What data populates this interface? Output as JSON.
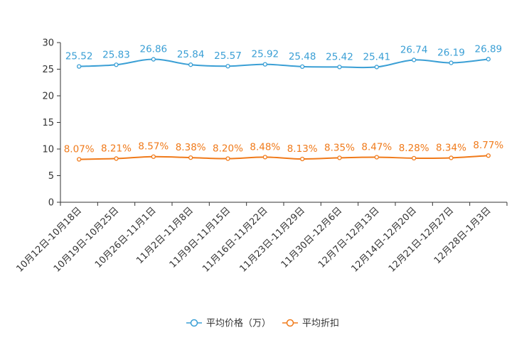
{
  "chart_data": {
    "type": "line",
    "title": "",
    "xlabel": "",
    "ylabel": "",
    "ylim": [
      0,
      30
    ],
    "yticks": [
      0,
      5,
      10,
      15,
      20,
      25,
      30
    ],
    "categories": [
      "10月12日-10月18日",
      "10月19日-10月25日",
      "10月26日-11月1日",
      "11月2日-11月8日",
      "11月9日-11月15日",
      "11月16日-11月22日",
      "11月23日-11月29日",
      "11月30日-12月6日",
      "12月7日-12月13日",
      "12月14日-12月20日",
      "12月21日-12月27日",
      "12月28日-1月3日"
    ],
    "series": [
      {
        "name": "平均价格（万）",
        "color": "#3a9fd5",
        "values": [
          25.52,
          25.83,
          26.86,
          25.84,
          25.57,
          25.92,
          25.48,
          25.42,
          25.41,
          26.74,
          26.19,
          26.89
        ],
        "labels": [
          "25.52",
          "25.83",
          "26.86",
          "25.84",
          "25.57",
          "25.92",
          "25.48",
          "25.42",
          "25.41",
          "26.74",
          "26.19",
          "26.89"
        ]
      },
      {
        "name": "平均折扣",
        "color": "#f07a1a",
        "values": [
          8.07,
          8.21,
          8.57,
          8.38,
          8.2,
          8.48,
          8.13,
          8.35,
          8.47,
          8.28,
          8.34,
          8.77
        ],
        "labels": [
          "8.07%",
          "8.21%",
          "8.57%",
          "8.38%",
          "8.20%",
          "8.48%",
          "8.13%",
          "8.35%",
          "8.47%",
          "8.28%",
          "8.34%",
          "8.77%"
        ]
      }
    ],
    "legend": "bottom-center"
  }
}
